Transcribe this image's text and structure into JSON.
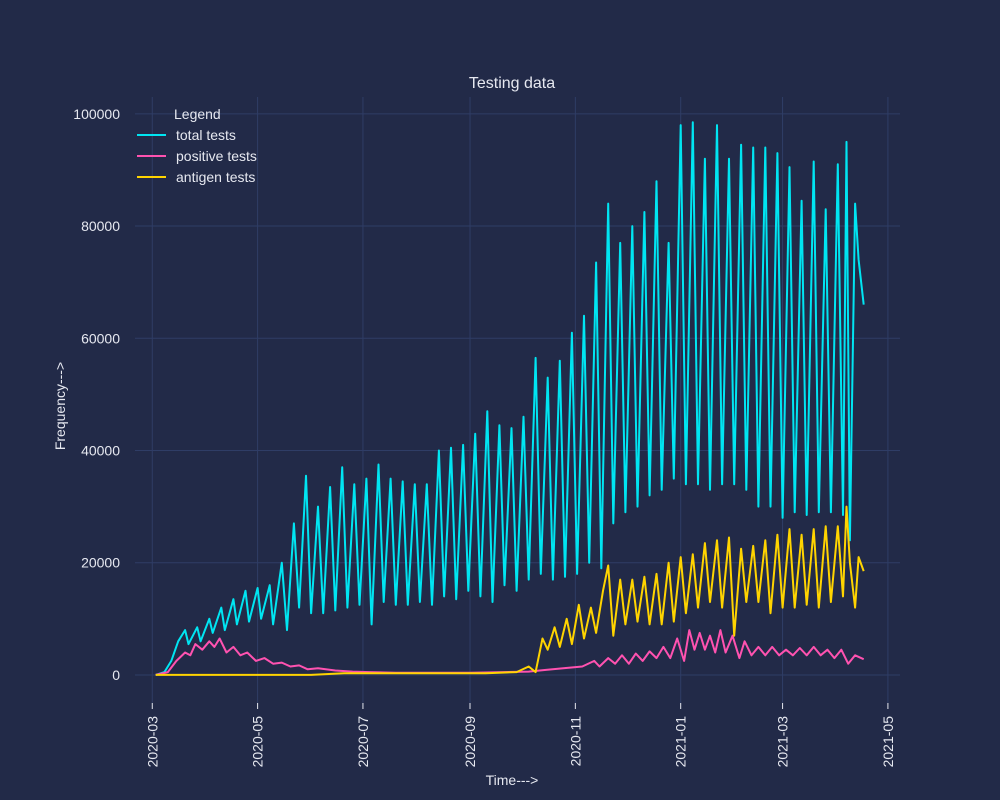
{
  "chart_data": {
    "type": "line",
    "title": "Testing data",
    "xlabel": "Time--->",
    "ylabel": "Frequency--->",
    "x_range": [
      "2020-02-20",
      "2021-05-08"
    ],
    "ylim": [
      -5000,
      103000
    ],
    "x_ticks": [
      {
        "date": "2020-03-01",
        "label": "2020-03"
      },
      {
        "date": "2020-05-01",
        "label": "2020-05"
      },
      {
        "date": "2020-07-01",
        "label": "2020-07"
      },
      {
        "date": "2020-09-01",
        "label": "2020-09"
      },
      {
        "date": "2020-11-01",
        "label": "2020-11"
      },
      {
        "date": "2021-01-01",
        "label": "2021-01"
      },
      {
        "date": "2021-03-01",
        "label": "2021-03"
      },
      {
        "date": "2021-05-01",
        "label": "2021-05"
      }
    ],
    "y_ticks": [
      {
        "value": 0,
        "label": "0"
      },
      {
        "value": 20000,
        "label": "20000"
      },
      {
        "value": 40000,
        "label": "40000"
      },
      {
        "value": 60000,
        "label": "60000"
      },
      {
        "value": 80000,
        "label": "80000"
      },
      {
        "value": 100000,
        "label": "100000"
      }
    ],
    "grid": true,
    "legend": {
      "title": "Legend",
      "position": "top-left"
    },
    "series": [
      {
        "name": "total tests",
        "color": "#00e5f2",
        "points": [
          [
            "2020-03-03",
            0
          ],
          [
            "2020-03-08",
            500
          ],
          [
            "2020-03-12",
            2500
          ],
          [
            "2020-03-16",
            6000
          ],
          [
            "2020-03-20",
            8000
          ],
          [
            "2020-03-22",
            5500
          ],
          [
            "2020-03-27",
            8500
          ],
          [
            "2020-03-29",
            6000
          ],
          [
            "2020-04-03",
            10000
          ],
          [
            "2020-04-05",
            7500
          ],
          [
            "2020-04-10",
            12000
          ],
          [
            "2020-04-12",
            8000
          ],
          [
            "2020-04-17",
            13500
          ],
          [
            "2020-04-19",
            9000
          ],
          [
            "2020-04-24",
            15000
          ],
          [
            "2020-04-26",
            9500
          ],
          [
            "2020-05-01",
            15500
          ],
          [
            "2020-05-03",
            10000
          ],
          [
            "2020-05-08",
            16000
          ],
          [
            "2020-05-10",
            9000
          ],
          [
            "2020-05-15",
            20000
          ],
          [
            "2020-05-18",
            8000
          ],
          [
            "2020-05-22",
            27000
          ],
          [
            "2020-05-25",
            12000
          ],
          [
            "2020-05-29",
            35500
          ],
          [
            "2020-06-01",
            11000
          ],
          [
            "2020-06-05",
            30000
          ],
          [
            "2020-06-08",
            11000
          ],
          [
            "2020-06-12",
            33500
          ],
          [
            "2020-06-15",
            11500
          ],
          [
            "2020-06-19",
            37000
          ],
          [
            "2020-06-22",
            12000
          ],
          [
            "2020-06-26",
            34000
          ],
          [
            "2020-06-29",
            12500
          ],
          [
            "2020-07-03",
            35000
          ],
          [
            "2020-07-06",
            9000
          ],
          [
            "2020-07-10",
            37500
          ],
          [
            "2020-07-13",
            13000
          ],
          [
            "2020-07-17",
            35000
          ],
          [
            "2020-07-20",
            12500
          ],
          [
            "2020-07-24",
            34500
          ],
          [
            "2020-07-27",
            12500
          ],
          [
            "2020-07-31",
            34000
          ],
          [
            "2020-08-03",
            13000
          ],
          [
            "2020-08-07",
            34000
          ],
          [
            "2020-08-10",
            12500
          ],
          [
            "2020-08-14",
            40000
          ],
          [
            "2020-08-17",
            14000
          ],
          [
            "2020-08-21",
            40500
          ],
          [
            "2020-08-24",
            13500
          ],
          [
            "2020-08-28",
            41000
          ],
          [
            "2020-08-31",
            15000
          ],
          [
            "2020-09-04",
            43000
          ],
          [
            "2020-09-07",
            14000
          ],
          [
            "2020-09-11",
            47000
          ],
          [
            "2020-09-14",
            13000
          ],
          [
            "2020-09-18",
            44500
          ],
          [
            "2020-09-21",
            16000
          ],
          [
            "2020-09-25",
            44000
          ],
          [
            "2020-09-28",
            15000
          ],
          [
            "2020-10-02",
            46000
          ],
          [
            "2020-10-05",
            17000
          ],
          [
            "2020-10-09",
            56500
          ],
          [
            "2020-10-12",
            18000
          ],
          [
            "2020-10-16",
            53000
          ],
          [
            "2020-10-19",
            17000
          ],
          [
            "2020-10-23",
            56000
          ],
          [
            "2020-10-26",
            17500
          ],
          [
            "2020-10-30",
            61000
          ],
          [
            "2020-11-02",
            18000
          ],
          [
            "2020-11-06",
            64000
          ],
          [
            "2020-11-09",
            20000
          ],
          [
            "2020-11-13",
            73500
          ],
          [
            "2020-11-16",
            19000
          ],
          [
            "2020-11-20",
            84000
          ],
          [
            "2020-11-23",
            27000
          ],
          [
            "2020-11-27",
            77000
          ],
          [
            "2020-11-30",
            29000
          ],
          [
            "2020-12-04",
            80000
          ],
          [
            "2020-12-07",
            30000
          ],
          [
            "2020-12-11",
            82500
          ],
          [
            "2020-12-14",
            32000
          ],
          [
            "2020-12-18",
            88000
          ],
          [
            "2020-12-21",
            33000
          ],
          [
            "2020-12-25",
            77000
          ],
          [
            "2020-12-28",
            35000
          ],
          [
            "2021-01-01",
            98000
          ],
          [
            "2021-01-04",
            34000
          ],
          [
            "2021-01-08",
            98500
          ],
          [
            "2021-01-11",
            34000
          ],
          [
            "2021-01-15",
            92000
          ],
          [
            "2021-01-18",
            33000
          ],
          [
            "2021-01-22",
            98000
          ],
          [
            "2021-01-25",
            34000
          ],
          [
            "2021-01-29",
            92000
          ],
          [
            "2021-02-01",
            34000
          ],
          [
            "2021-02-05",
            94500
          ],
          [
            "2021-02-08",
            33000
          ],
          [
            "2021-02-12",
            94000
          ],
          [
            "2021-02-15",
            30000
          ],
          [
            "2021-02-19",
            94000
          ],
          [
            "2021-02-22",
            30000
          ],
          [
            "2021-02-26",
            93000
          ],
          [
            "2021-03-01",
            28000
          ],
          [
            "2021-03-05",
            90500
          ],
          [
            "2021-03-08",
            29000
          ],
          [
            "2021-03-12",
            84500
          ],
          [
            "2021-03-15",
            28500
          ],
          [
            "2021-03-19",
            91500
          ],
          [
            "2021-03-22",
            29000
          ],
          [
            "2021-03-26",
            83000
          ],
          [
            "2021-03-29",
            29000
          ],
          [
            "2021-04-02",
            91000
          ],
          [
            "2021-04-05",
            28500
          ],
          [
            "2021-04-07",
            95000
          ],
          [
            "2021-04-09",
            24000
          ],
          [
            "2021-04-12",
            84000
          ],
          [
            "2021-04-14",
            74000
          ],
          [
            "2021-04-17",
            66000
          ]
        ]
      },
      {
        "name": "positive tests",
        "color": "#ff52b0",
        "points": [
          [
            "2020-03-03",
            0
          ],
          [
            "2020-03-10",
            500
          ],
          [
            "2020-03-15",
            2500
          ],
          [
            "2020-03-20",
            4000
          ],
          [
            "2020-03-23",
            3500
          ],
          [
            "2020-03-26",
            5500
          ],
          [
            "2020-03-30",
            4500
          ],
          [
            "2020-04-03",
            6000
          ],
          [
            "2020-04-06",
            5000
          ],
          [
            "2020-04-09",
            6500
          ],
          [
            "2020-04-13",
            4000
          ],
          [
            "2020-04-17",
            5000
          ],
          [
            "2020-04-21",
            3500
          ],
          [
            "2020-04-25",
            4000
          ],
          [
            "2020-04-30",
            2500
          ],
          [
            "2020-05-05",
            3000
          ],
          [
            "2020-05-10",
            2000
          ],
          [
            "2020-05-15",
            2200
          ],
          [
            "2020-05-20",
            1500
          ],
          [
            "2020-05-25",
            1700
          ],
          [
            "2020-05-30",
            1000
          ],
          [
            "2020-06-05",
            1200
          ],
          [
            "2020-06-15",
            800
          ],
          [
            "2020-06-25",
            600
          ],
          [
            "2020-07-05",
            500
          ],
          [
            "2020-07-20",
            400
          ],
          [
            "2020-08-10",
            400
          ],
          [
            "2020-09-01",
            400
          ],
          [
            "2020-09-20",
            500
          ],
          [
            "2020-10-05",
            600
          ],
          [
            "2020-10-15",
            900
          ],
          [
            "2020-10-25",
            1200
          ],
          [
            "2020-11-05",
            1500
          ],
          [
            "2020-11-12",
            2500
          ],
          [
            "2020-11-15",
            1500
          ],
          [
            "2020-11-20",
            3000
          ],
          [
            "2020-11-24",
            2000
          ],
          [
            "2020-11-28",
            3500
          ],
          [
            "2020-12-02",
            2000
          ],
          [
            "2020-12-06",
            3800
          ],
          [
            "2020-12-10",
            2500
          ],
          [
            "2020-12-14",
            4200
          ],
          [
            "2020-12-18",
            3000
          ],
          [
            "2020-12-22",
            5000
          ],
          [
            "2020-12-26",
            3000
          ],
          [
            "2020-12-30",
            6500
          ],
          [
            "2021-01-03",
            2500
          ],
          [
            "2021-01-06",
            8000
          ],
          [
            "2021-01-09",
            4500
          ],
          [
            "2021-01-12",
            7500
          ],
          [
            "2021-01-15",
            4500
          ],
          [
            "2021-01-18",
            7000
          ],
          [
            "2021-01-21",
            4000
          ],
          [
            "2021-01-24",
            8000
          ],
          [
            "2021-01-27",
            4000
          ],
          [
            "2021-01-31",
            7000
          ],
          [
            "2021-02-04",
            3000
          ],
          [
            "2021-02-07",
            6000
          ],
          [
            "2021-02-11",
            3500
          ],
          [
            "2021-02-15",
            5000
          ],
          [
            "2021-02-19",
            3500
          ],
          [
            "2021-02-23",
            5000
          ],
          [
            "2021-02-27",
            3500
          ],
          [
            "2021-03-03",
            4500
          ],
          [
            "2021-03-07",
            3500
          ],
          [
            "2021-03-11",
            4800
          ],
          [
            "2021-03-15",
            3500
          ],
          [
            "2021-03-19",
            5000
          ],
          [
            "2021-03-23",
            3500
          ],
          [
            "2021-03-27",
            4500
          ],
          [
            "2021-03-31",
            3000
          ],
          [
            "2021-04-04",
            4500
          ],
          [
            "2021-04-08",
            2000
          ],
          [
            "2021-04-12",
            3500
          ],
          [
            "2021-04-17",
            2800
          ]
        ]
      },
      {
        "name": "antigen tests",
        "color": "#ffd400",
        "points": [
          [
            "2020-03-03",
            0
          ],
          [
            "2020-06-01",
            0
          ],
          [
            "2020-06-20",
            300
          ],
          [
            "2020-07-10",
            300
          ],
          [
            "2020-08-10",
            300
          ],
          [
            "2020-09-10",
            300
          ],
          [
            "2020-09-28",
            500
          ],
          [
            "2020-10-05",
            1500
          ],
          [
            "2020-10-09",
            500
          ],
          [
            "2020-10-13",
            6500
          ],
          [
            "2020-10-16",
            4500
          ],
          [
            "2020-10-20",
            8500
          ],
          [
            "2020-10-23",
            5000
          ],
          [
            "2020-10-27",
            10000
          ],
          [
            "2020-10-30",
            5500
          ],
          [
            "2020-11-03",
            12500
          ],
          [
            "2020-11-06",
            6500
          ],
          [
            "2020-11-10",
            12000
          ],
          [
            "2020-11-13",
            7500
          ],
          [
            "2020-11-17",
            15000
          ],
          [
            "2020-11-20",
            19500
          ],
          [
            "2020-11-23",
            7000
          ],
          [
            "2020-11-27",
            17000
          ],
          [
            "2020-11-30",
            9000
          ],
          [
            "2020-12-04",
            17000
          ],
          [
            "2020-12-07",
            9500
          ],
          [
            "2020-12-11",
            17500
          ],
          [
            "2020-12-14",
            9000
          ],
          [
            "2020-12-18",
            18000
          ],
          [
            "2020-12-21",
            9000
          ],
          [
            "2020-12-25",
            20000
          ],
          [
            "2020-12-28",
            9500
          ],
          [
            "2021-01-01",
            21000
          ],
          [
            "2021-01-04",
            11000
          ],
          [
            "2021-01-08",
            21500
          ],
          [
            "2021-01-11",
            12000
          ],
          [
            "2021-01-15",
            23500
          ],
          [
            "2021-01-18",
            13000
          ],
          [
            "2021-01-22",
            24000
          ],
          [
            "2021-01-25",
            12000
          ],
          [
            "2021-01-29",
            24500
          ],
          [
            "2021-02-01",
            7000
          ],
          [
            "2021-02-05",
            22500
          ],
          [
            "2021-02-08",
            13000
          ],
          [
            "2021-02-12",
            23000
          ],
          [
            "2021-02-15",
            13000
          ],
          [
            "2021-02-19",
            24000
          ],
          [
            "2021-02-22",
            11000
          ],
          [
            "2021-02-26",
            25000
          ],
          [
            "2021-03-01",
            12000
          ],
          [
            "2021-03-05",
            26000
          ],
          [
            "2021-03-08",
            12000
          ],
          [
            "2021-03-12",
            25000
          ],
          [
            "2021-03-15",
            12500
          ],
          [
            "2021-03-19",
            26000
          ],
          [
            "2021-03-22",
            12000
          ],
          [
            "2021-03-26",
            26500
          ],
          [
            "2021-03-29",
            13000
          ],
          [
            "2021-04-02",
            26500
          ],
          [
            "2021-04-05",
            14000
          ],
          [
            "2021-04-07",
            30000
          ],
          [
            "2021-04-09",
            20000
          ],
          [
            "2021-04-12",
            12000
          ],
          [
            "2021-04-14",
            21000
          ],
          [
            "2021-04-17",
            18500
          ]
        ]
      }
    ]
  }
}
